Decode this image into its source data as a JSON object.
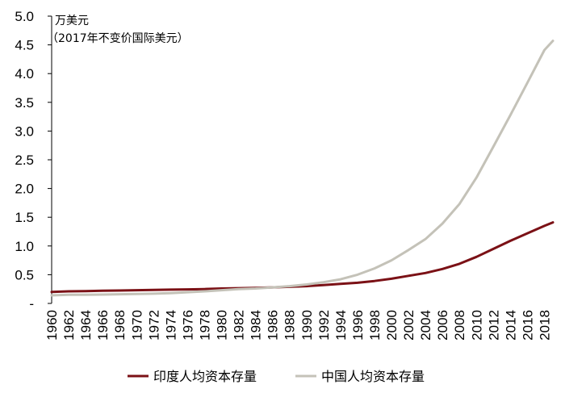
{
  "chart_data": {
    "type": "line",
    "unit_line1": "万美元",
    "unit_line2": "（2017年不变价国际美元）",
    "ylim": [
      0,
      5.0
    ],
    "y_ticks": [
      {
        "value": 0,
        "label": "-"
      },
      {
        "value": 0.5,
        "label": "0.5"
      },
      {
        "value": 1.0,
        "label": "1.0"
      },
      {
        "value": 1.5,
        "label": "1.5"
      },
      {
        "value": 2.0,
        "label": "2.0"
      },
      {
        "value": 2.5,
        "label": "2.5"
      },
      {
        "value": 3.0,
        "label": "3.0"
      },
      {
        "value": 3.5,
        "label": "3.5"
      },
      {
        "value": 4.0,
        "label": "4.0"
      },
      {
        "value": 4.5,
        "label": "4.5"
      },
      {
        "value": 5.0,
        "label": "5.0"
      }
    ],
    "x_tick_labels": [
      "1960",
      "1962",
      "1964",
      "1966",
      "1968",
      "1970",
      "1972",
      "1974",
      "1976",
      "1978",
      "1980",
      "1982",
      "1984",
      "1986",
      "1988",
      "1990",
      "1992",
      "1994",
      "1996",
      "1998",
      "2000",
      "2002",
      "2004",
      "2006",
      "2008",
      "2010",
      "2012",
      "2014",
      "2016",
      "2018"
    ],
    "x": [
      1960,
      1962,
      1964,
      1966,
      1968,
      1970,
      1972,
      1974,
      1976,
      1978,
      1980,
      1982,
      1984,
      1986,
      1988,
      1990,
      1992,
      1994,
      1996,
      1998,
      2000,
      2002,
      2004,
      2006,
      2008,
      2010,
      2012,
      2014,
      2016,
      2018,
      2019
    ],
    "legend_position": "bottom",
    "series": [
      {
        "name": "印度人均资本存量",
        "color": "#7b1116",
        "values": [
          0.2,
          0.21,
          0.215,
          0.22,
          0.225,
          0.23,
          0.235,
          0.24,
          0.245,
          0.25,
          0.26,
          0.265,
          0.27,
          0.28,
          0.29,
          0.3,
          0.32,
          0.34,
          0.36,
          0.39,
          0.43,
          0.48,
          0.53,
          0.6,
          0.69,
          0.81,
          0.95,
          1.09,
          1.22,
          1.35,
          1.41
        ]
      },
      {
        "name": "中国人均资本存量",
        "color": "#c4c2b8",
        "values": [
          0.14,
          0.15,
          0.15,
          0.155,
          0.16,
          0.165,
          0.17,
          0.18,
          0.195,
          0.21,
          0.23,
          0.25,
          0.26,
          0.28,
          0.3,
          0.33,
          0.37,
          0.42,
          0.5,
          0.61,
          0.75,
          0.93,
          1.12,
          1.39,
          1.73,
          2.19,
          2.73,
          3.28,
          3.84,
          4.41,
          4.57
        ]
      }
    ]
  }
}
